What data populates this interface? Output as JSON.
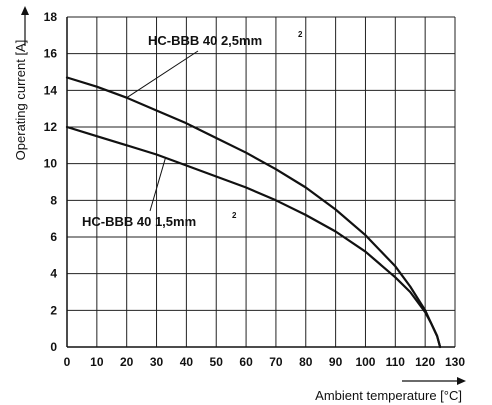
{
  "chart_data": {
    "type": "line",
    "xlabel": "Ambient temperature [°C]",
    "ylabel": "Operating current [A]",
    "xlim": [
      0,
      130
    ],
    "ylim": [
      0,
      18
    ],
    "x_ticks": [
      0,
      10,
      20,
      30,
      40,
      50,
      60,
      70,
      80,
      90,
      100,
      110,
      120,
      130
    ],
    "y_ticks": [
      0,
      2,
      4,
      6,
      8,
      10,
      12,
      14,
      16,
      18
    ],
    "grid": true,
    "series": [
      {
        "name": "HC-BBB 40 2,5mm",
        "name_main": "HC-BBB 40  2,5mm",
        "name_sup": "2",
        "x": [
          0,
          10,
          20,
          30,
          40,
          50,
          60,
          70,
          80,
          90,
          100,
          110,
          115,
          120,
          122,
          124,
          125
        ],
        "y": [
          14.7,
          14.2,
          13.6,
          12.9,
          12.2,
          11.4,
          10.6,
          9.7,
          8.7,
          7.5,
          6.1,
          4.4,
          3.3,
          2.0,
          1.3,
          0.6,
          0.0
        ]
      },
      {
        "name": "HC-BBB 40 1,5mm",
        "name_main": "HC-BBB 40  1,5mm",
        "name_sup": "2",
        "x": [
          0,
          10,
          20,
          30,
          40,
          50,
          60,
          70,
          80,
          90,
          100,
          110,
          115,
          120,
          122,
          124,
          125
        ],
        "y": [
          12.0,
          11.5,
          11.0,
          10.5,
          9.9,
          9.3,
          8.7,
          8.0,
          7.2,
          6.3,
          5.2,
          3.8,
          3.0,
          1.9,
          1.3,
          0.6,
          0.0
        ]
      }
    ]
  }
}
